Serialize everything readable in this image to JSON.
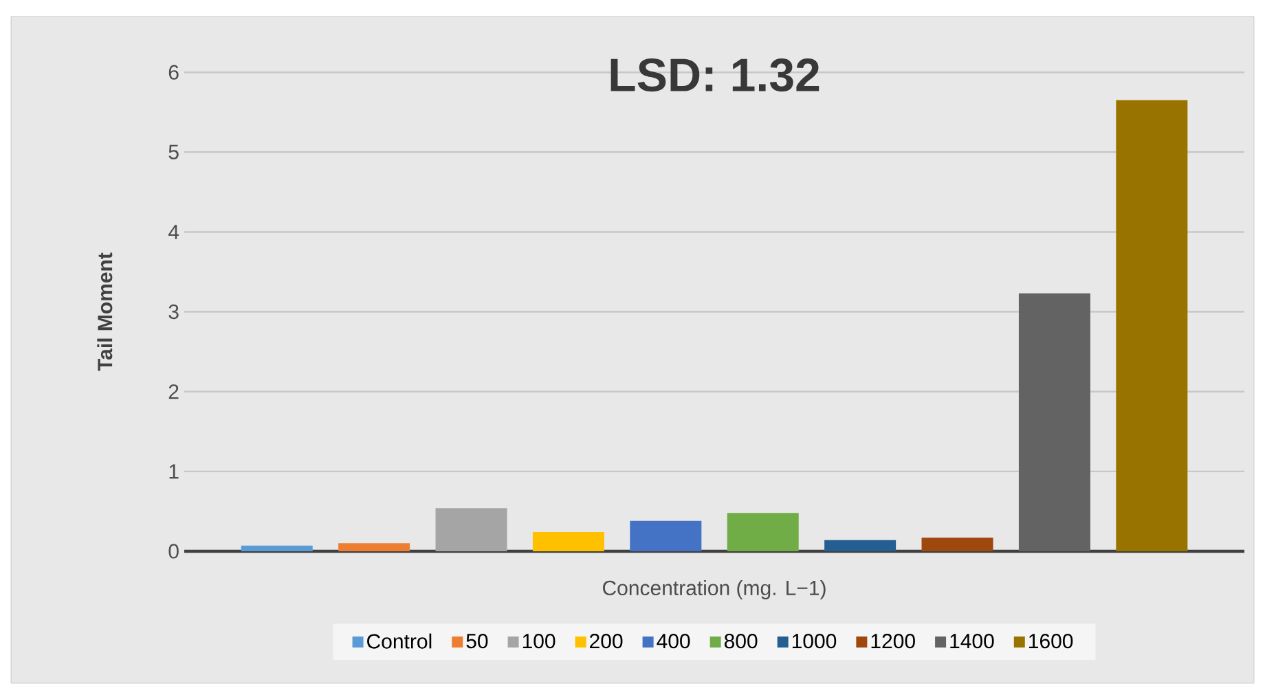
{
  "chart_data": {
    "type": "bar",
    "title": "LSD: 1.32",
    "xlabel": "Concentration (mg. L−1)",
    "ylabel": "Tail Moment",
    "categories": [
      null
    ],
    "series": [
      {
        "name": "Control",
        "color": "#5b9bd5",
        "values": [
          0.07
        ]
      },
      {
        "name": "50",
        "color": "#ed7d31",
        "values": [
          0.1
        ]
      },
      {
        "name": "100",
        "color": "#a5a5a5",
        "values": [
          0.54
        ]
      },
      {
        "name": "200",
        "color": "#ffc000",
        "values": [
          0.24
        ]
      },
      {
        "name": "400",
        "color": "#4472c4",
        "values": [
          0.38
        ]
      },
      {
        "name": "800",
        "color": "#70ad47",
        "values": [
          0.48
        ]
      },
      {
        "name": "1000",
        "color": "#255e91",
        "values": [
          0.14
        ]
      },
      {
        "name": "1200",
        "color": "#9e480e",
        "values": [
          0.17
        ]
      },
      {
        "name": "1400",
        "color": "#636363",
        "values": [
          3.23
        ]
      },
      {
        "name": "1600",
        "color": "#997300",
        "values": [
          5.65
        ]
      }
    ],
    "ylim": [
      0,
      6
    ],
    "yticks": [
      0,
      1,
      2,
      3,
      4,
      5,
      6
    ],
    "grid": "y",
    "legend": "bottom",
    "tick_labels": "y"
  }
}
